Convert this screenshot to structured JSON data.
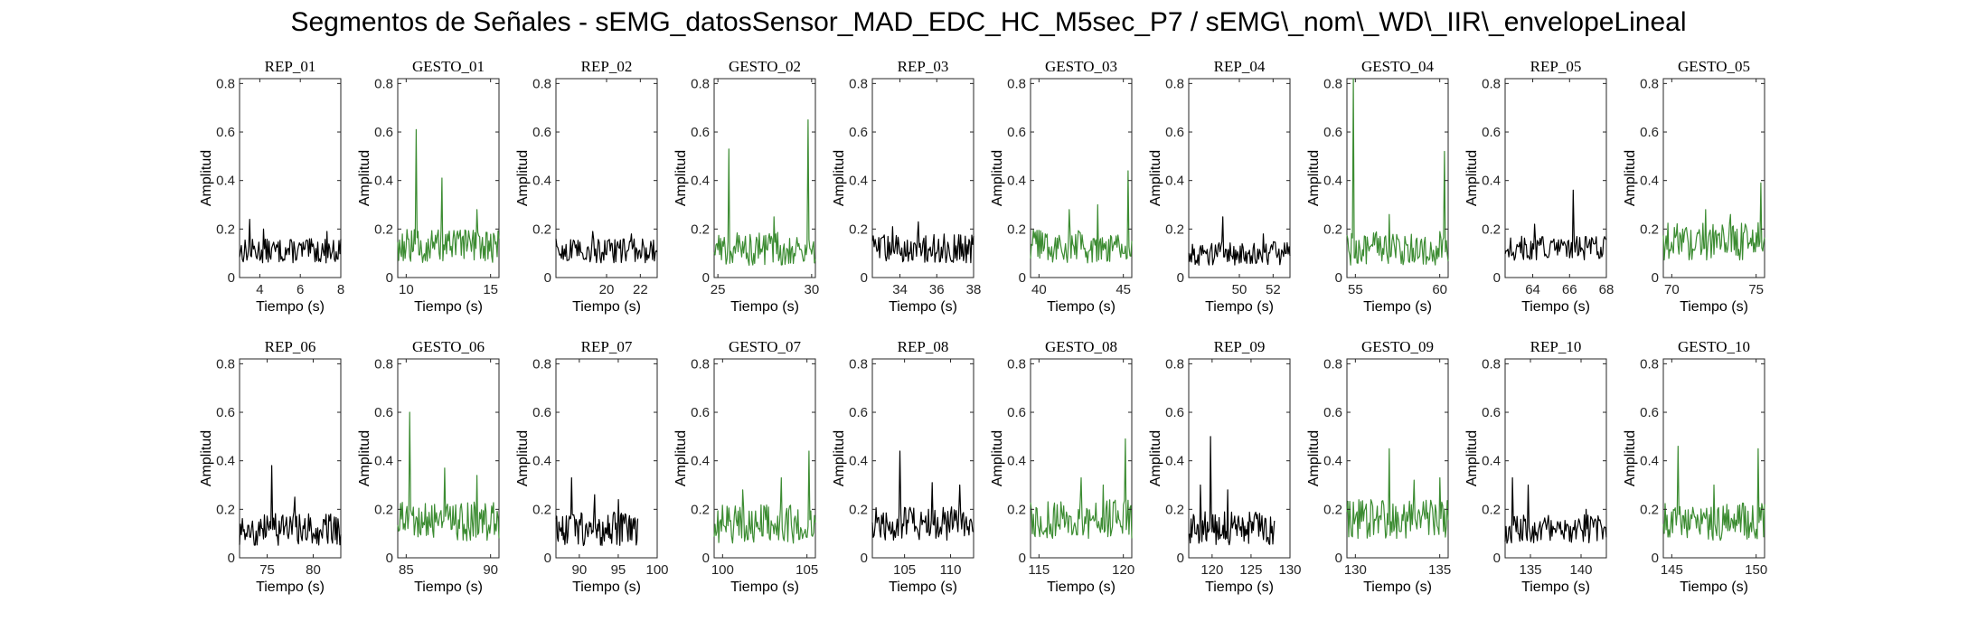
{
  "figure_title": "Segmentos de Señales - sEMG_datosSensor_MAD_EDC_HC_M5sec_P7 / sEMG\\_nom\\_WD\\_IIR\\_envelopeLineal",
  "colors": {
    "rep": "#000000",
    "gesto": "#3c8c32",
    "axis": "#262626"
  },
  "chart_data": [
    {
      "type": "line",
      "title": "REP_01",
      "xlabel": "Tiempo (s)",
      "ylabel": "Amplitud",
      "xlim": [
        3,
        8
      ],
      "ylim": [
        0,
        0.82
      ],
      "xticks": [
        4,
        6,
        8
      ],
      "yticks": [
        0,
        0.2,
        0.4,
        0.6,
        0.8
      ],
      "series": [
        {
          "color": "#000000",
          "stats": {
            "base": 0.11,
            "var": 0.05,
            "peaks": [
              [
                3.5,
                0.24
              ],
              [
                4.2,
                0.2
              ],
              [
                7.3,
                0.19
              ]
            ]
          }
        }
      ]
    },
    {
      "type": "line",
      "title": "GESTO_01",
      "xlabel": "Tiempo (s)",
      "ylabel": "Amplitud",
      "xlim": [
        9.5,
        15.5
      ],
      "ylim": [
        0,
        0.82
      ],
      "xticks": [
        10,
        15
      ],
      "yticks": [
        0,
        0.2,
        0.4,
        0.6,
        0.8
      ],
      "series": [
        {
          "color": "#3c8c32",
          "stats": {
            "base": 0.13,
            "var": 0.07,
            "peaks": [
              [
                10.6,
                0.61
              ],
              [
                12.1,
                0.41
              ],
              [
                14.2,
                0.28
              ]
            ]
          }
        }
      ]
    },
    {
      "type": "line",
      "title": "REP_02",
      "xlabel": "Tiempo (s)",
      "ylabel": "Amplitud",
      "xlim": [
        17,
        23
      ],
      "ylim": [
        0,
        0.82
      ],
      "xticks": [
        20,
        22
      ],
      "yticks": [
        0,
        0.2,
        0.4,
        0.6,
        0.8
      ],
      "series": [
        {
          "color": "#000000",
          "stats": {
            "base": 0.11,
            "var": 0.05,
            "peaks": [
              [
                19.2,
                0.19
              ],
              [
                21.5,
                0.18
              ]
            ]
          }
        }
      ]
    },
    {
      "type": "line",
      "title": "GESTO_02",
      "xlabel": "Tiempo (s)",
      "ylabel": "Amplitud",
      "xlim": [
        24.8,
        30.2
      ],
      "ylim": [
        0,
        0.82
      ],
      "xticks": [
        25,
        30
      ],
      "yticks": [
        0,
        0.2,
        0.4,
        0.6,
        0.8
      ],
      "series": [
        {
          "color": "#3c8c32",
          "stats": {
            "base": 0.12,
            "var": 0.07,
            "peaks": [
              [
                25.6,
                0.53
              ],
              [
                29.8,
                0.65
              ],
              [
                28,
                0.25
              ]
            ]
          }
        }
      ]
    },
    {
      "type": "line",
      "title": "REP_03",
      "xlabel": "Tiempo (s)",
      "ylabel": "Amplitud",
      "xlim": [
        32.5,
        38
      ],
      "ylim": [
        0,
        0.82
      ],
      "xticks": [
        34,
        36,
        38
      ],
      "yticks": [
        0,
        0.2,
        0.4,
        0.6,
        0.8
      ],
      "series": [
        {
          "color": "#000000",
          "stats": {
            "base": 0.12,
            "var": 0.06,
            "peaks": [
              [
                35,
                0.23
              ],
              [
                33.6,
                0.21
              ]
            ]
          }
        }
      ]
    },
    {
      "type": "line",
      "title": "GESTO_03",
      "xlabel": "Tiempo (s)",
      "ylabel": "Amplitud",
      "xlim": [
        39.5,
        45.5
      ],
      "ylim": [
        0,
        0.82
      ],
      "xticks": [
        40,
        45
      ],
      "yticks": [
        0,
        0.2,
        0.4,
        0.6,
        0.8
      ],
      "series": [
        {
          "color": "#3c8c32",
          "stats": {
            "base": 0.13,
            "var": 0.07,
            "peaks": [
              [
                45.3,
                0.44
              ],
              [
                41.8,
                0.28
              ],
              [
                43.5,
                0.3
              ]
            ]
          }
        }
      ]
    },
    {
      "type": "line",
      "title": "REP_04",
      "xlabel": "Tiempo (s)",
      "ylabel": "Amplitud",
      "xlim": [
        47,
        53
      ],
      "ylim": [
        0,
        0.82
      ],
      "xticks": [
        50,
        52
      ],
      "yticks": [
        0,
        0.2,
        0.4,
        0.6,
        0.8
      ],
      "series": [
        {
          "color": "#000000",
          "stats": {
            "base": 0.1,
            "var": 0.05,
            "peaks": [
              [
                49,
                0.25
              ],
              [
                51.4,
                0.18
              ]
            ]
          }
        }
      ]
    },
    {
      "type": "line",
      "title": "GESTO_04",
      "xlabel": "Tiempo (s)",
      "ylabel": "Amplitud",
      "xlim": [
        54.5,
        60.5
      ],
      "ylim": [
        0,
        0.82
      ],
      "xticks": [
        55,
        60
      ],
      "yticks": [
        0,
        0.2,
        0.4,
        0.6,
        0.8
      ],
      "series": [
        {
          "color": "#3c8c32",
          "stats": {
            "base": 0.12,
            "var": 0.07,
            "peaks": [
              [
                54.9,
                0.82
              ],
              [
                60.3,
                0.52
              ],
              [
                57,
                0.26
              ]
            ]
          }
        }
      ]
    },
    {
      "type": "line",
      "title": "REP_05",
      "xlabel": "Tiempo (s)",
      "ylabel": "Amplitud",
      "xlim": [
        62.5,
        68
      ],
      "ylim": [
        0,
        0.82
      ],
      "xticks": [
        64,
        66,
        68
      ],
      "yticks": [
        0,
        0.2,
        0.4,
        0.6,
        0.8
      ],
      "series": [
        {
          "color": "#000000",
          "stats": {
            "base": 0.12,
            "var": 0.05,
            "peaks": [
              [
                66.2,
                0.36
              ],
              [
                64.1,
                0.22
              ]
            ]
          }
        }
      ]
    },
    {
      "type": "line",
      "title": "GESTO_05",
      "xlabel": "Tiempo (s)",
      "ylabel": "Amplitud",
      "xlim": [
        69.5,
        75.5
      ],
      "ylim": [
        0,
        0.82
      ],
      "xticks": [
        70,
        75
      ],
      "yticks": [
        0,
        0.2,
        0.4,
        0.6,
        0.8
      ],
      "series": [
        {
          "color": "#3c8c32",
          "stats": {
            "base": 0.15,
            "var": 0.08,
            "peaks": [
              [
                75.3,
                0.39
              ],
              [
                72,
                0.28
              ],
              [
                73.5,
                0.26
              ]
            ]
          }
        }
      ]
    },
    {
      "type": "line",
      "title": "REP_06",
      "xlabel": "Tiempo (s)",
      "ylabel": "Amplitud",
      "xlim": [
        72,
        83
      ],
      "ylim": [
        0,
        0.82
      ],
      "xticks": [
        75,
        80
      ],
      "yticks": [
        0,
        0.2,
        0.4,
        0.6,
        0.8
      ],
      "series": [
        {
          "color": "#000000",
          "stats": {
            "base": 0.12,
            "var": 0.07,
            "peaks": [
              [
                75.5,
                0.38
              ],
              [
                78,
                0.25
              ]
            ]
          }
        }
      ]
    },
    {
      "type": "line",
      "title": "GESTO_06",
      "xlabel": "Tiempo (s)",
      "ylabel": "Amplitud",
      "xlim": [
        84.5,
        90.5
      ],
      "ylim": [
        0,
        0.82
      ],
      "xticks": [
        85,
        90
      ],
      "yticks": [
        0,
        0.2,
        0.4,
        0.6,
        0.8
      ],
      "series": [
        {
          "color": "#3c8c32",
          "stats": {
            "base": 0.15,
            "var": 0.08,
            "peaks": [
              [
                85.2,
                0.6
              ],
              [
                87.3,
                0.37
              ],
              [
                89.2,
                0.34
              ]
            ]
          }
        }
      ]
    },
    {
      "type": "line",
      "title": "REP_07",
      "xlabel": "Tiempo (s)",
      "ylabel": "Amplitud",
      "xlim": [
        87,
        100
      ],
      "ylim": [
        0,
        0.82
      ],
      "xticks": [
        90,
        95,
        100
      ],
      "yticks": [
        0,
        0.2,
        0.4,
        0.6,
        0.8
      ],
      "series": [
        {
          "color": "#000000",
          "xmax": 97.5,
          "stats": {
            "base": 0.12,
            "var": 0.07,
            "peaks": [
              [
                89,
                0.33
              ],
              [
                92,
                0.26
              ],
              [
                95,
                0.24
              ]
            ]
          }
        }
      ]
    },
    {
      "type": "line",
      "title": "GESTO_07",
      "xlabel": "Tiempo (s)",
      "ylabel": "Amplitud",
      "xlim": [
        99.5,
        105.5
      ],
      "ylim": [
        0,
        0.82
      ],
      "xticks": [
        100,
        105
      ],
      "yticks": [
        0,
        0.2,
        0.4,
        0.6,
        0.8
      ],
      "series": [
        {
          "color": "#3c8c32",
          "stats": {
            "base": 0.14,
            "var": 0.08,
            "peaks": [
              [
                105.1,
                0.44
              ],
              [
                103.5,
                0.33
              ],
              [
                101.2,
                0.28
              ]
            ]
          }
        }
      ]
    },
    {
      "type": "line",
      "title": "REP_08",
      "xlabel": "Tiempo (s)",
      "ylabel": "Amplitud",
      "xlim": [
        101.5,
        112.5
      ],
      "ylim": [
        0,
        0.82
      ],
      "xticks": [
        105,
        110
      ],
      "yticks": [
        0,
        0.2,
        0.4,
        0.6,
        0.8
      ],
      "series": [
        {
          "color": "#000000",
          "stats": {
            "base": 0.14,
            "var": 0.07,
            "peaks": [
              [
                104.5,
                0.44
              ],
              [
                108,
                0.31
              ],
              [
                111,
                0.3
              ]
            ]
          }
        }
      ]
    },
    {
      "type": "line",
      "title": "GESTO_08",
      "xlabel": "Tiempo (s)",
      "ylabel": "Amplitud",
      "xlim": [
        114.5,
        120.5
      ],
      "ylim": [
        0,
        0.82
      ],
      "xticks": [
        115,
        120
      ],
      "yticks": [
        0,
        0.2,
        0.4,
        0.6,
        0.8
      ],
      "series": [
        {
          "color": "#3c8c32",
          "stats": {
            "base": 0.16,
            "var": 0.08,
            "peaks": [
              [
                120.1,
                0.49
              ],
              [
                117.5,
                0.33
              ],
              [
                118.8,
                0.3
              ]
            ]
          }
        }
      ]
    },
    {
      "type": "line",
      "title": "REP_09",
      "xlabel": "Tiempo (s)",
      "ylabel": "Amplitud",
      "xlim": [
        117,
        130
      ],
      "ylim": [
        0,
        0.82
      ],
      "xticks": [
        120,
        125,
        130
      ],
      "yticks": [
        0,
        0.2,
        0.4,
        0.6,
        0.8
      ],
      "series": [
        {
          "color": "#000000",
          "xmax": 128,
          "stats": {
            "base": 0.12,
            "var": 0.07,
            "peaks": [
              [
                119.8,
                0.5
              ],
              [
                118.5,
                0.3
              ],
              [
                122,
                0.28
              ]
            ]
          }
        }
      ]
    },
    {
      "type": "line",
      "title": "GESTO_09",
      "xlabel": "Tiempo (s)",
      "ylabel": "Amplitud",
      "xlim": [
        129.5,
        135.5
      ],
      "ylim": [
        0,
        0.82
      ],
      "xticks": [
        130,
        135
      ],
      "yticks": [
        0,
        0.2,
        0.4,
        0.6,
        0.8
      ],
      "series": [
        {
          "color": "#3c8c32",
          "stats": {
            "base": 0.16,
            "var": 0.08,
            "peaks": [
              [
                132,
                0.45
              ],
              [
                133.5,
                0.32
              ],
              [
                135,
                0.33
              ]
            ]
          }
        }
      ]
    },
    {
      "type": "line",
      "title": "REP_10",
      "xlabel": "Tiempo (s)",
      "ylabel": "Amplitud",
      "xlim": [
        132.5,
        142.5
      ],
      "ylim": [
        0,
        0.82
      ],
      "xticks": [
        135,
        140
      ],
      "yticks": [
        0,
        0.2,
        0.4,
        0.6,
        0.8
      ],
      "series": [
        {
          "color": "#000000",
          "stats": {
            "base": 0.12,
            "var": 0.06,
            "peaks": [
              [
                133.2,
                0.33
              ],
              [
                134.8,
                0.3
              ],
              [
                140.5,
                0.2
              ]
            ]
          }
        }
      ]
    },
    {
      "type": "line",
      "title": "GESTO_10",
      "xlabel": "Tiempo (s)",
      "ylabel": "Amplitud",
      "xlim": [
        144.5,
        150.5
      ],
      "ylim": [
        0,
        0.82
      ],
      "xticks": [
        145,
        150
      ],
      "yticks": [
        0,
        0.2,
        0.4,
        0.6,
        0.8
      ],
      "series": [
        {
          "color": "#3c8c32",
          "stats": {
            "base": 0.15,
            "var": 0.08,
            "peaks": [
              [
                145.4,
                0.46
              ],
              [
                150.1,
                0.45
              ],
              [
                147.5,
                0.3
              ]
            ]
          }
        }
      ]
    }
  ]
}
